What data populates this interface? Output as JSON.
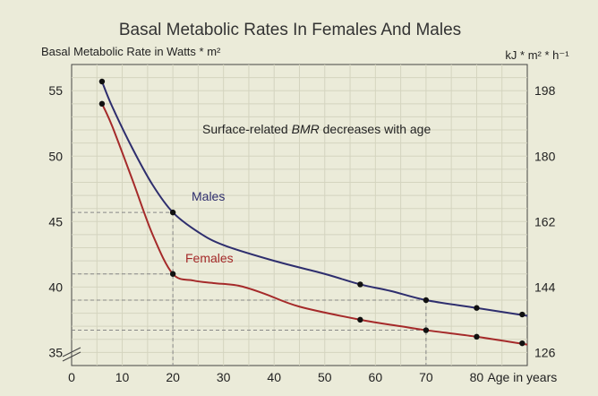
{
  "chart_data": {
    "type": "line",
    "title": "Basal Metabolic Rates In Females And Males",
    "ylabel_left": "Basal Metabolic Rate in Watts * m²",
    "ylabel_right": "kJ * m² * h⁻¹",
    "xlabel": "Age in years",
    "annotation_prefix": "Surface-related ",
    "annotation_em": "BMR",
    "annotation_suffix": " decreases with age",
    "xlim": [
      0,
      90
    ],
    "ylim": [
      34,
      57
    ],
    "x_ticks": [
      0,
      10,
      20,
      30,
      40,
      50,
      60,
      70,
      80
    ],
    "x_tick_labels": [
      "0",
      "10",
      "20",
      "30",
      "40",
      "50",
      "60",
      "70",
      "80"
    ],
    "y_ticks_left": [
      35,
      40,
      45,
      50,
      55
    ],
    "y_tick_labels_left": [
      "35",
      "40",
      "45",
      "50",
      "55"
    ],
    "y_ticks_right_values": [
      35,
      40,
      45,
      50,
      55
    ],
    "y_tick_labels_right": [
      "126",
      "144",
      "162",
      "180",
      "198"
    ],
    "grid": true,
    "reference_lines": [
      {
        "x": 20,
        "y": 45.7
      },
      {
        "x": 20,
        "y": 41.0
      },
      {
        "x": 70,
        "y": 39.0
      },
      {
        "x": 70,
        "y": 36.7
      }
    ],
    "series": [
      {
        "name": "Males",
        "color": "#2e2e6e",
        "x": [
          6,
          8,
          12,
          16,
          20,
          25,
          30,
          40,
          50,
          57,
          63,
          70,
          80,
          90
        ],
        "y": [
          55.7,
          53.8,
          50.6,
          47.8,
          45.7,
          44.2,
          43.2,
          42.0,
          41.0,
          40.2,
          39.7,
          39.0,
          38.4,
          37.8
        ],
        "markers_x": [
          6,
          20,
          57,
          70,
          80,
          89
        ],
        "markers_y": [
          55.7,
          45.7,
          40.2,
          39.0,
          38.4,
          37.9
        ]
      },
      {
        "name": "Females",
        "color": "#a52a2a",
        "x": [
          6,
          8,
          12,
          16,
          20,
          24,
          28,
          33,
          38,
          45,
          57,
          65,
          70,
          80,
          90
        ],
        "y": [
          54.0,
          52.3,
          48.2,
          44.0,
          41.0,
          40.5,
          40.3,
          40.1,
          39.5,
          38.5,
          37.5,
          37.0,
          36.7,
          36.2,
          35.6
        ],
        "markers_x": [
          6,
          20,
          57,
          70,
          80,
          89
        ],
        "markers_y": [
          54.0,
          41.0,
          37.5,
          36.7,
          36.2,
          35.7
        ]
      }
    ],
    "series_labels": [
      "Males",
      "Females"
    ]
  }
}
